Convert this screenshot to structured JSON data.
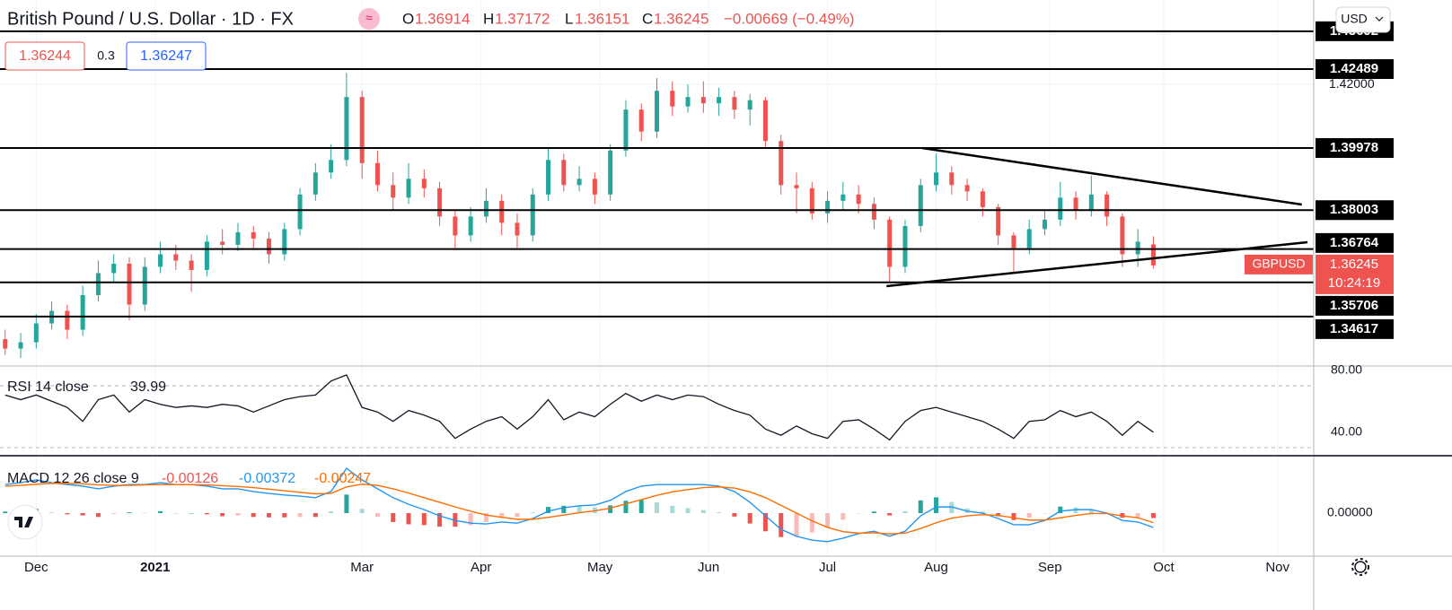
{
  "header": {
    "title": "British Pound / U.S. Dollar · 1D · FX",
    "o": "O",
    "h": "H",
    "l": "L",
    "c": "C",
    "change": "−0.00669 (−0.49%)",
    "bid": "1.36244",
    "spread": "0.3",
    "ask": "1.36247",
    "currency": "USD",
    "symbol": "GBPUSD",
    "countdown": "10:24:19"
  },
  "chart_data": [
    {
      "type": "candlestick",
      "x": [
        0,
        3,
        6,
        9,
        12,
        15,
        18,
        21,
        24,
        27,
        30,
        33,
        36,
        39,
        42,
        45,
        48,
        51,
        54,
        57,
        60,
        63,
        66,
        69,
        72,
        75,
        78,
        81,
        84,
        87,
        90,
        93,
        96,
        99,
        102,
        105,
        108,
        111,
        114,
        117,
        120,
        123,
        126,
        129,
        132,
        135,
        138,
        141,
        144,
        147,
        150,
        153,
        156,
        159,
        162,
        165,
        168,
        171,
        174,
        177,
        180,
        183,
        186,
        189,
        192,
        195,
        198,
        201,
        204,
        207,
        210,
        213,
        216,
        219,
        222
      ],
      "open": [
        1.339,
        1.336,
        1.338,
        1.344,
        1.348,
        1.342,
        1.353,
        1.36,
        1.363,
        1.35,
        1.362,
        1.366,
        1.364,
        1.361,
        1.37,
        1.369,
        1.373,
        1.371,
        1.366,
        1.374,
        1.385,
        1.392,
        1.396,
        1.416,
        1.395,
        1.388,
        1.384,
        1.39,
        1.387,
        1.378,
        1.372,
        1.378,
        1.383,
        1.376,
        1.372,
        1.385,
        1.396,
        1.388,
        1.39,
        1.385,
        1.399,
        1.412,
        1.405,
        1.418,
        1.413,
        1.416,
        1.414,
        1.416,
        1.412,
        1.415,
        1.402,
        1.388,
        1.387,
        1.379,
        1.383,
        1.385,
        1.382,
        1.377,
        1.362,
        1.375,
        1.388,
        1.392,
        1.388,
        1.386,
        1.381,
        1.372,
        1.368,
        1.374,
        1.377,
        1.384,
        1.38,
        1.385,
        1.378,
        1.366,
        1.36914
      ],
      "high": [
        1.342,
        1.341,
        1.347,
        1.351,
        1.35,
        1.356,
        1.364,
        1.366,
        1.365,
        1.365,
        1.37,
        1.369,
        1.366,
        1.372,
        1.374,
        1.376,
        1.375,
        1.373,
        1.376,
        1.387,
        1.395,
        1.401,
        1.4237,
        1.418,
        1.399,
        1.392,
        1.395,
        1.393,
        1.389,
        1.38,
        1.381,
        1.387,
        1.385,
        1.379,
        1.387,
        1.4,
        1.398,
        1.394,
        1.392,
        1.401,
        1.415,
        1.414,
        1.422,
        1.421,
        1.42,
        1.421,
        1.419,
        1.418,
        1.417,
        1.416,
        1.404,
        1.392,
        1.389,
        1.386,
        1.389,
        1.388,
        1.384,
        1.378,
        1.377,
        1.39,
        1.398,
        1.394,
        1.39,
        1.387,
        1.382,
        1.373,
        1.377,
        1.38,
        1.389,
        1.386,
        1.391,
        1.386,
        1.379,
        1.374,
        1.37172
      ],
      "low": [
        1.334,
        1.333,
        1.336,
        1.342,
        1.339,
        1.34,
        1.351,
        1.357,
        1.345,
        1.348,
        1.36,
        1.361,
        1.354,
        1.359,
        1.366,
        1.367,
        1.368,
        1.363,
        1.364,
        1.372,
        1.383,
        1.39,
        1.394,
        1.39,
        1.386,
        1.38,
        1.382,
        1.384,
        1.375,
        1.368,
        1.37,
        1.376,
        1.372,
        1.368,
        1.37,
        1.383,
        1.386,
        1.386,
        1.382,
        1.383,
        1.397,
        1.402,
        1.403,
        1.41,
        1.411,
        1.411,
        1.41,
        1.409,
        1.407,
        1.4,
        1.385,
        1.379,
        1.377,
        1.376,
        1.38,
        1.379,
        1.374,
        1.357,
        1.36,
        1.373,
        1.386,
        1.385,
        1.383,
        1.378,
        1.369,
        1.36,
        1.366,
        1.372,
        1.375,
        1.377,
        1.378,
        1.375,
        1.362,
        1.362,
        1.36151
      ],
      "close": [
        1.336,
        1.338,
        1.344,
        1.348,
        1.342,
        1.353,
        1.36,
        1.363,
        1.35,
        1.362,
        1.366,
        1.364,
        1.361,
        1.37,
        1.369,
        1.373,
        1.371,
        1.366,
        1.374,
        1.385,
        1.392,
        1.396,
        1.416,
        1.395,
        1.388,
        1.384,
        1.39,
        1.387,
        1.378,
        1.372,
        1.378,
        1.383,
        1.376,
        1.372,
        1.385,
        1.396,
        1.388,
        1.39,
        1.385,
        1.399,
        1.412,
        1.405,
        1.418,
        1.413,
        1.416,
        1.414,
        1.416,
        1.412,
        1.415,
        1.402,
        1.388,
        1.387,
        1.379,
        1.383,
        1.385,
        1.382,
        1.377,
        1.362,
        1.375,
        1.388,
        1.392,
        1.388,
        1.386,
        1.381,
        1.372,
        1.368,
        1.374,
        1.377,
        1.384,
        1.38,
        1.385,
        1.378,
        1.366,
        1.37,
        1.36245
      ],
      "up_color": "#26a69a",
      "down_color": "#ef5350",
      "xlim": [
        -1,
        253
      ],
      "xticks": [
        {
          "value": 6,
          "label": "Dec"
        },
        {
          "value": 29,
          "label": "2021"
        },
        {
          "value": 69,
          "label": "Mar"
        },
        {
          "value": 92,
          "label": "Apr"
        },
        {
          "value": 115,
          "label": "May"
        },
        {
          "value": 136,
          "label": "Jun"
        },
        {
          "value": 159,
          "label": "Jul"
        },
        {
          "value": 180,
          "label": "Aug"
        },
        {
          "value": 202,
          "label": "Sep"
        },
        {
          "value": 224,
          "label": "Oct"
        },
        {
          "value": 246,
          "label": "Nov"
        }
      ],
      "ylim": [
        1.33046,
        1.44686
      ],
      "yticks": [
        {
          "value": 1.42,
          "label": "1.42000"
        }
      ],
      "levels": [
        1.43692,
        1.42489,
        1.39978,
        1.38003,
        1.36764,
        1.35706,
        1.34617
      ],
      "trendlines": [
        {
          "x": [
            177.3,
            250.7
          ],
          "y": [
            1.39978,
            1.38181
          ]
        },
        {
          "x": [
            170.4,
            251.8
          ],
          "y": [
            1.35585,
            1.36983
          ]
        }
      ],
      "grid": true
    },
    {
      "type": "line",
      "title": "RSI 14 close",
      "color": "#131722",
      "values": [
        64,
        61,
        64,
        60,
        56,
        47,
        61,
        64,
        53,
        61,
        58,
        56,
        57,
        56,
        58,
        57,
        53,
        57,
        61,
        63,
        64,
        73,
        77,
        56,
        53,
        47,
        54,
        51,
        47,
        36,
        42,
        47,
        50,
        42,
        50,
        61,
        48,
        53,
        50,
        58,
        65,
        60,
        64,
        61,
        64,
        63,
        58,
        54,
        51,
        42,
        38,
        44,
        39,
        36,
        47,
        48,
        42,
        35,
        47,
        54,
        56,
        53,
        50,
        47,
        42,
        36,
        47,
        48,
        54,
        50,
        53,
        47,
        38,
        47,
        39.99
      ],
      "ylim": [
        24.8,
        82.75
      ],
      "yticks": [
        {
          "value": 80,
          "label": "80.00"
        },
        {
          "value": 40,
          "label": "40.00"
        }
      ],
      "bands": [
        70,
        30
      ]
    },
    {
      "type": "macd",
      "title": "MACD 12 26 close 9",
      "series": [
        {
          "name": "Histogram",
          "kind": "bar",
          "color": "#ef5350",
          "up_color": "#26a69a",
          "values": [
            0.0004,
            0.0007,
            0.0011,
            0.0002,
            -0.0003,
            -0.0006,
            -0.001,
            -0.0002,
            0.0002,
            0.0001,
            0.0005,
            0,
            0,
            -0.0003,
            -0.0008,
            -0.0006,
            -0.001,
            -0.0011,
            -0.0011,
            -0.001,
            -0.001,
            0.0005,
            0.0048,
            0.0011,
            -0.0009,
            -0.0023,
            -0.0029,
            -0.0031,
            -0.0035,
            -0.0035,
            -0.0031,
            -0.0023,
            -0.0012,
            -0.001,
            0.0002,
            0.0016,
            0.0019,
            0.0018,
            0.0015,
            0.002,
            0.0032,
            0.0035,
            0.0028,
            0.0019,
            0.0013,
            0.0008,
            0.0002,
            -0.0009,
            -0.0027,
            -0.0047,
            -0.0062,
            -0.006,
            -0.005,
            -0.0037,
            -0.0017,
            -0.0001,
            0.0004,
            -0.0006,
            0.0005,
            0.0033,
            0.0041,
            0.0029,
            0.0012,
            0.0004,
            -0.0008,
            -0.0018,
            -0.0012,
            -0.0001,
            0.0017,
            0.0015,
            0.001,
            0.0001,
            -0.0012,
            -0.0011,
            -0.00126
          ]
        },
        {
          "name": "MACD",
          "kind": "line",
          "color": "#2196f3",
          "values": [
            0.0074,
            0.0079,
            0.0086,
            0.0079,
            0.0074,
            0.007,
            0.0063,
            0.007,
            0.0074,
            0.0074,
            0.0079,
            0.0074,
            0.0074,
            0.007,
            0.0063,
            0.0063,
            0.0056,
            0.0051,
            0.0047,
            0.0044,
            0.004,
            0.0056,
            0.0116,
            0.0086,
            0.0063,
            0.004,
            0.0023,
            0.0009,
            -0.0007,
            -0.0019,
            -0.0026,
            -0.0028,
            -0.0023,
            -0.0026,
            -0.0014,
            0.0005,
            0.0014,
            0.0019,
            0.0021,
            0.0033,
            0.0056,
            0.007,
            0.0074,
            0.0074,
            0.0074,
            0.0074,
            0.007,
            0.0056,
            0.0028,
            -0.0007,
            -0.0042,
            -0.006,
            -0.007,
            -0.0074,
            -0.0065,
            -0.0053,
            -0.0047,
            -0.006,
            -0.0047,
            -0.0007,
            0.0016,
            0.0016,
            0.0005,
            0,
            -0.0014,
            -0.003,
            -0.003,
            -0.0019,
            0.0005,
            0.0009,
            0.0009,
            0,
            -0.0019,
            -0.0023,
            -0.00372
          ]
        },
        {
          "name": "Signal",
          "kind": "line",
          "color": "#ff6d00",
          "values": [
            0.007,
            0.0072,
            0.0075,
            0.0077,
            0.0077,
            0.0076,
            0.0073,
            0.0072,
            0.0072,
            0.0073,
            0.0074,
            0.0074,
            0.0074,
            0.0073,
            0.0071,
            0.0069,
            0.0066,
            0.0062,
            0.0058,
            0.0054,
            0.005,
            0.0051,
            0.0068,
            0.0075,
            0.0072,
            0.0063,
            0.0052,
            0.004,
            0.0028,
            0.0016,
            0.0005,
            -0.0005,
            -0.0011,
            -0.0016,
            -0.0016,
            -0.0011,
            -0.0005,
            0.0001,
            0.0006,
            0.0013,
            0.0024,
            0.0035,
            0.0046,
            0.0055,
            0.0061,
            0.0066,
            0.0068,
            0.0065,
            0.0055,
            0.004,
            0.002,
            0,
            -0.002,
            -0.0037,
            -0.0048,
            -0.0052,
            -0.0051,
            -0.0054,
            -0.0052,
            -0.004,
            -0.0025,
            -0.0013,
            -0.0007,
            -0.0004,
            -0.0006,
            -0.0012,
            -0.0018,
            -0.0018,
            -0.0012,
            -0.0006,
            -0.0001,
            -0.0001,
            -0.0007,
            -0.0012,
            -0.00247
          ]
        }
      ],
      "ylim": [
        -0.01116,
        0.01488
      ],
      "yticks": [
        {
          "value": 0,
          "label": "0.00000"
        }
      ]
    }
  ]
}
